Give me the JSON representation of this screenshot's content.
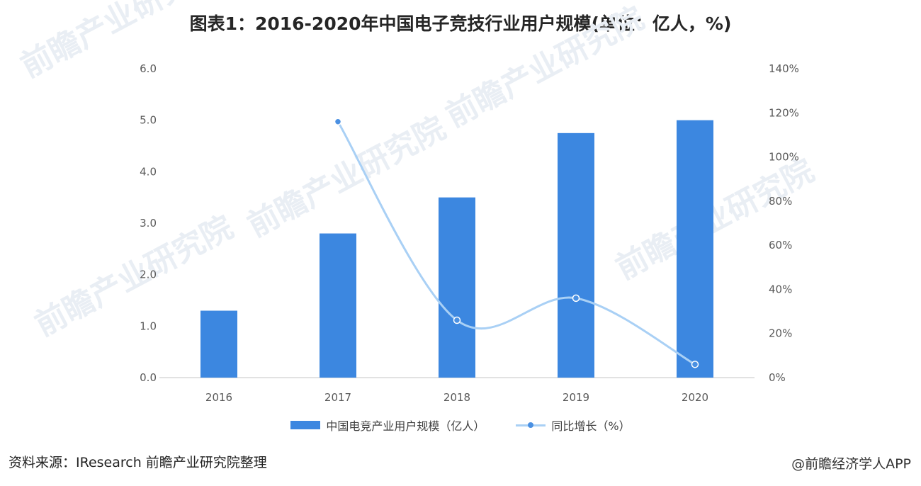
{
  "title": "图表1：2016-2020年中国电子竞技行业用户规模(单位：亿人，%)",
  "source": "资料来源：IResearch 前瞻产业研究院整理",
  "app_watermark": "@前瞻经济学人APP",
  "watermark_text": "前瞻产业研究院",
  "colors": {
    "bar": "#3c87e0",
    "line": "#a9d0f5",
    "marker": "#4a90e2",
    "axis": "#d9d9d9",
    "tick": "#595959"
  },
  "chart_data": {
    "type": "bar",
    "categories": [
      "2016",
      "2017",
      "2018",
      "2019",
      "2020"
    ],
    "series": [
      {
        "name": "中国电竞产业用户规模（亿人）",
        "type": "bar",
        "axis": "left",
        "values": [
          1.3,
          2.8,
          3.5,
          4.75,
          5.0
        ]
      },
      {
        "name": "同比增长（%）",
        "type": "line",
        "axis": "right",
        "smooth": true,
        "values": [
          null,
          116,
          26,
          36,
          6
        ]
      }
    ],
    "y_left": {
      "ylim": [
        0,
        6
      ],
      "ticks": [
        "0.0",
        "1.0",
        "2.0",
        "3.0",
        "4.0",
        "5.0",
        "6.0"
      ]
    },
    "y_right": {
      "ylim": [
        0,
        140
      ],
      "ticks": [
        "0%",
        "20%",
        "40%",
        "60%",
        "80%",
        "100%",
        "120%",
        "140%"
      ]
    },
    "grid": false,
    "legend": "bottom"
  }
}
